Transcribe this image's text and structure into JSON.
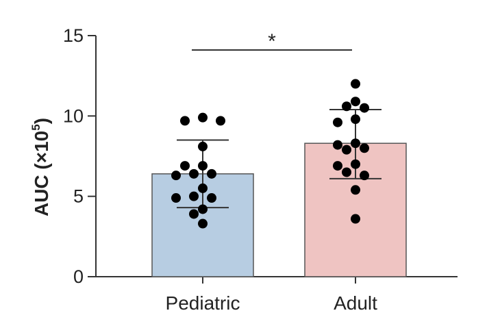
{
  "chart_data": {
    "type": "bar",
    "categories": [
      "Pediatric",
      "Adult"
    ],
    "series": [
      {
        "name": "Pediatric",
        "mean": 6.4,
        "sd_low": 4.3,
        "sd_high": 8.5,
        "points": [
          9.7,
          9.9,
          9.7,
          8.1,
          6.9,
          6.9,
          6.4,
          6.4,
          6.3,
          5.5,
          5.0,
          4.9,
          4.9,
          4.2,
          3.9,
          3.3
        ],
        "color": "#b7cde2"
      },
      {
        "name": "Adult",
        "mean": 8.3,
        "sd_low": 6.1,
        "sd_high": 10.4,
        "points": [
          12.0,
          10.9,
          10.6,
          10.5,
          9.8,
          9.6,
          8.3,
          8.2,
          8.0,
          7.9,
          7.0,
          6.9,
          6.5,
          6.3,
          5.4,
          3.6
        ],
        "color": "#efc4c2"
      }
    ],
    "yticks": [
      0,
      5,
      10,
      15
    ],
    "ylim": [
      0,
      15
    ],
    "ylabel": {
      "main": "AUC (×10",
      "sup": "5",
      "close": ")"
    },
    "significance": {
      "label": "*",
      "between": [
        "Pediatric",
        "Adult"
      ]
    }
  }
}
